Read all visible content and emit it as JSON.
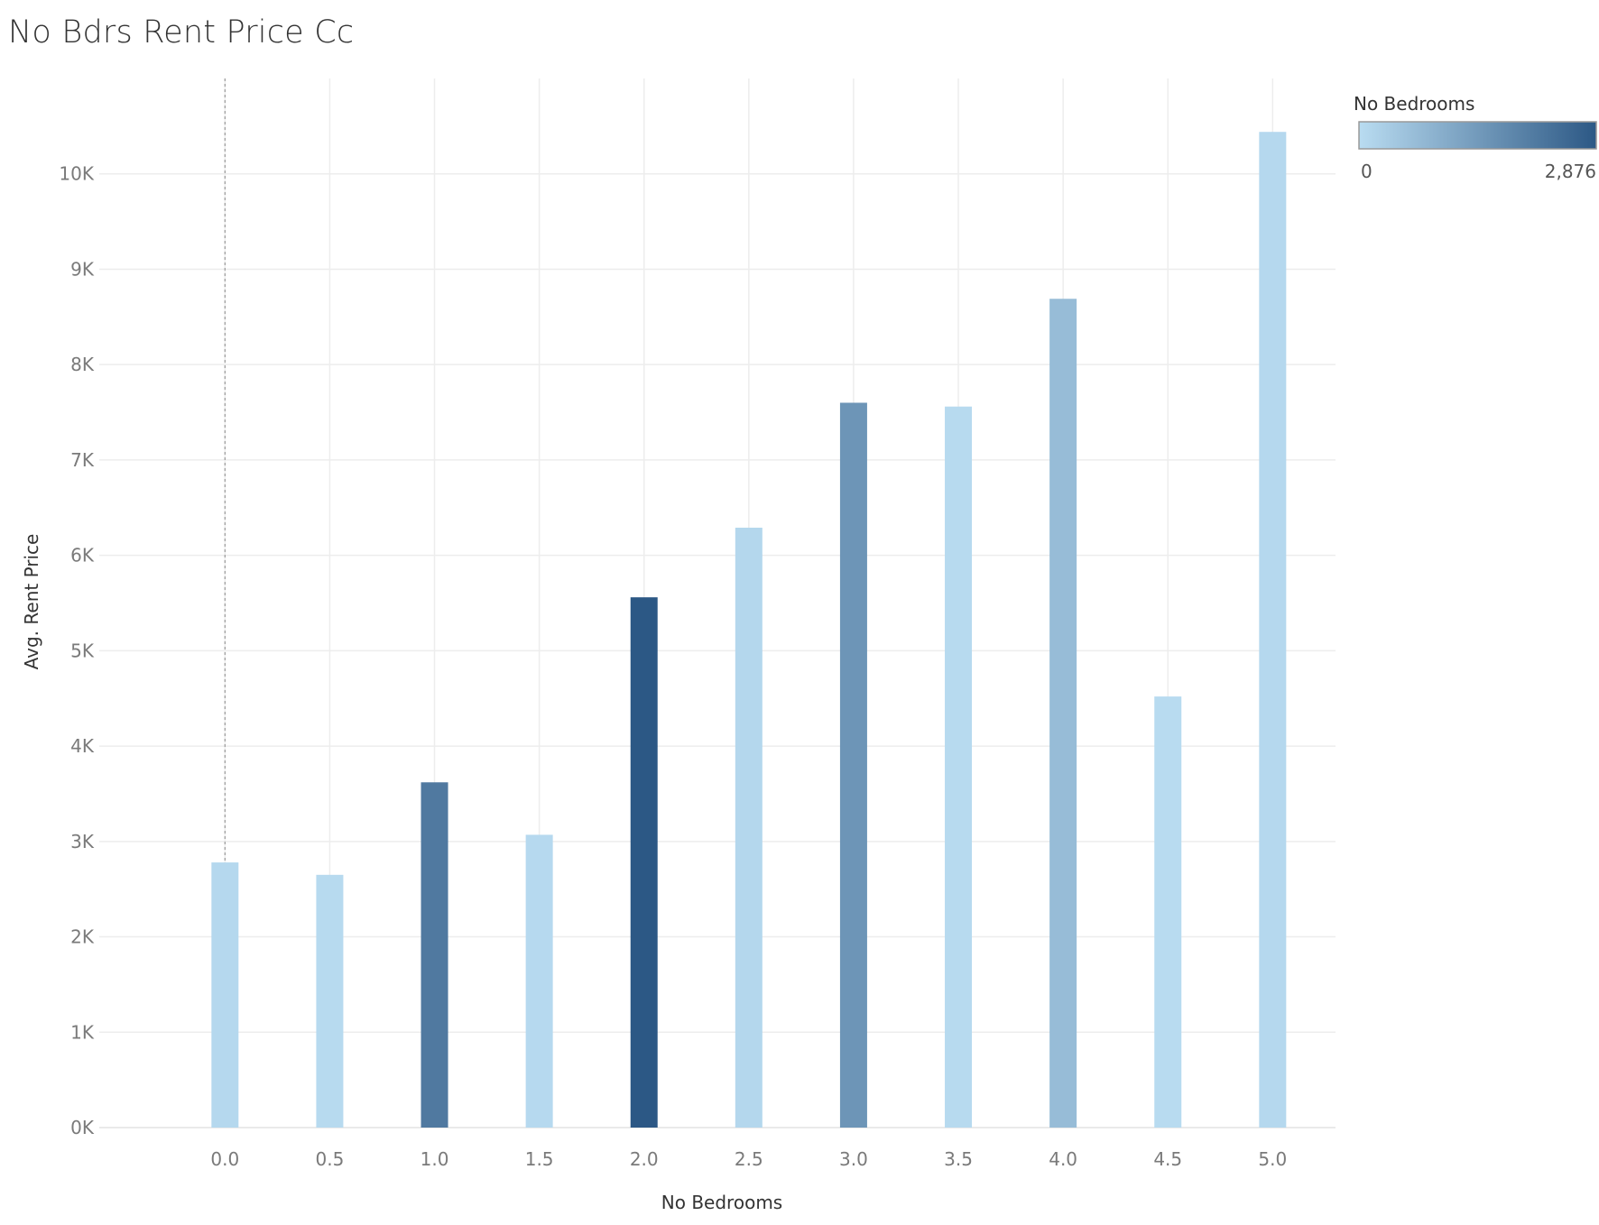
{
  "chart_data": {
    "type": "bar",
    "title": "No Bdrs Rent Price Cc",
    "xlabel": "No Bedrooms",
    "ylabel": "Avg. Rent Price",
    "x": [
      0.0,
      0.5,
      1.0,
      1.5,
      2.0,
      2.5,
      3.0,
      3.5,
      4.0,
      4.5,
      5.0
    ],
    "x_tick_labels": [
      "0.0",
      "0.5",
      "1.0",
      "1.5",
      "2.0",
      "2.5",
      "3.0",
      "3.5",
      "4.0",
      "4.5",
      "5.0"
    ],
    "values": [
      2780,
      2650,
      3620,
      3070,
      5560,
      6290,
      7600,
      7560,
      8690,
      4520,
      10440
    ],
    "color_values": [
      80,
      40,
      2150,
      60,
      2876,
      100,
      1550,
      50,
      700,
      30,
      90
    ],
    "y_tick_values": [
      0,
      1000,
      2000,
      3000,
      4000,
      5000,
      6000,
      7000,
      8000,
      9000,
      10000
    ],
    "y_tick_labels": [
      "0K",
      "1K",
      "2K",
      "3K",
      "4K",
      "5K",
      "6K",
      "7K",
      "8K",
      "9K",
      "10K"
    ],
    "ylim": [
      0,
      11000
    ],
    "xlim": [
      -0.6,
      5.3
    ],
    "grid": true,
    "reference_line_x": 0.0,
    "legend": {
      "title": "No Bedrooms",
      "min_label": "0",
      "max_label": "2,876",
      "min": 0,
      "max": 2876,
      "placement": "top-right",
      "color_low": "#b9dcf1",
      "color_high": "#2c5885"
    }
  }
}
